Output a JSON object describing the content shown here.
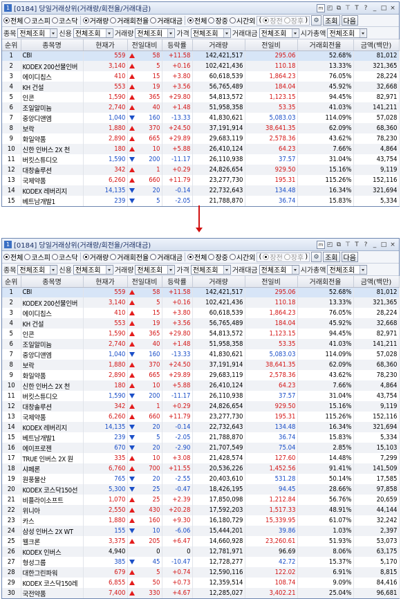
{
  "window": {
    "title": "[0184] 당일거래상위(거래량/회전율/거래대금)",
    "title_buttons": [
      "m",
      "◰",
      "□",
      "ꟷ",
      "T",
      "?",
      "_",
      "□",
      "×"
    ]
  },
  "market_filter": [
    "전체",
    "코스피",
    "코스닥"
  ],
  "sort_filter": [
    "거래량",
    "거래회전율",
    "거래대금"
  ],
  "period_filter": [
    "전체",
    "장중",
    "시간외"
  ],
  "session_filter": [
    "장전",
    "장후"
  ],
  "buttons": {
    "query": "조회",
    "next": "다음"
  },
  "filters": [
    {
      "label": "종목",
      "value": "전체조회"
    },
    {
      "label": "신용",
      "value": "전체조회"
    },
    {
      "label": "거래량",
      "value": "전체조회"
    },
    {
      "label": "가격",
      "value": "전체조회"
    },
    {
      "label": "거래대금",
      "value": "전체조회"
    },
    {
      "label": "시가총액",
      "value": "전체조회"
    }
  ],
  "columns": [
    "순위",
    "종목명",
    "현재가",
    "전일대비",
    "등락률",
    "거래량",
    "전일비",
    "거래회전율",
    "금액(백만)"
  ],
  "rows_top": [
    {
      "rank": "1",
      "name": "CBI",
      "price": "559",
      "dir": "up",
      "chg": "58",
      "rate": "+11.58",
      "vol": "142,421,517",
      "prev": "295.06",
      "turn": "52.68%",
      "amt": "81,012"
    },
    {
      "rank": "2",
      "name": "KODEX 200선물인버",
      "price": "3,140",
      "dir": "up",
      "chg": "5",
      "rate": "+0.16",
      "vol": "102,421,436",
      "prev": "110.18",
      "turn": "13.33%",
      "amt": "321,365"
    },
    {
      "rank": "3",
      "name": "에이디칩스",
      "price": "410",
      "dir": "up",
      "chg": "15",
      "rate": "+3.80",
      "vol": "60,618,539",
      "prev": "1,864.23",
      "turn": "76.05%",
      "amt": "28,224"
    },
    {
      "rank": "4",
      "name": "KH 건설",
      "price": "553",
      "dir": "up",
      "chg": "19",
      "rate": "+3.56",
      "vol": "56,765,489",
      "prev": "184.04",
      "turn": "45.92%",
      "amt": "32,668"
    },
    {
      "rank": "5",
      "name": "인콘",
      "price": "1,590",
      "dir": "lim",
      "chg": "365",
      "rate": "+29.80",
      "vol": "54,813,572",
      "prev": "1,123.15",
      "turn": "94.45%",
      "amt": "82,971"
    },
    {
      "rank": "6",
      "name": "조일알미늄",
      "price": "2,740",
      "dir": "up",
      "chg": "40",
      "rate": "+1.48",
      "vol": "51,958,358",
      "prev": "53.35",
      "turn": "41.03%",
      "amt": "141,211"
    },
    {
      "rank": "7",
      "name": "중앙디앤엠",
      "price": "1,040",
      "dir": "dn",
      "chg": "160",
      "rate": "-13.33",
      "vol": "41,830,621",
      "prev": "5,083.03",
      "turn": "114.09%",
      "amt": "57,028"
    },
    {
      "rank": "8",
      "name": "보락",
      "price": "1,880",
      "dir": "up",
      "chg": "370",
      "rate": "+24.50",
      "vol": "37,191,914",
      "prev": "38,641.35",
      "turn": "62.09%",
      "amt": "68,360"
    },
    {
      "rank": "9",
      "name": "화일약품",
      "price": "2,890",
      "dir": "lim",
      "chg": "665",
      "rate": "+29.89",
      "vol": "29,683,119",
      "prev": "2,578.36",
      "turn": "43.62%",
      "amt": "78,230"
    },
    {
      "rank": "10",
      "name": "신한 인버스 2X 천",
      "price": "180",
      "dir": "up",
      "chg": "10",
      "rate": "+5.88",
      "vol": "26,410,124",
      "prev": "64.23",
      "turn": "7.66%",
      "amt": "4,864"
    },
    {
      "rank": "11",
      "name": "버킷스튜디오",
      "price": "1,590",
      "dir": "dn",
      "chg": "200",
      "rate": "-11.17",
      "vol": "26,110,938",
      "prev": "37.57",
      "turn": "31.04%",
      "amt": "43,754"
    },
    {
      "rank": "12",
      "name": "대창솔루션",
      "price": "342",
      "dir": "up",
      "chg": "1",
      "rate": "+0.29",
      "vol": "24,826,654",
      "prev": "929.50",
      "turn": "15.16%",
      "amt": "9,119"
    },
    {
      "rank": "13",
      "name": "국제약품",
      "price": "6,260",
      "dir": "up",
      "chg": "660",
      "rate": "+11.79",
      "vol": "23,277,730",
      "prev": "195.31",
      "turn": "115.26%",
      "amt": "152,116"
    },
    {
      "rank": "14",
      "name": "KODEX 레버리지",
      "price": "14,135",
      "dir": "dn",
      "chg": "20",
      "rate": "-0.14",
      "vol": "22,732,643",
      "prev": "134.48",
      "turn": "16.34%",
      "amt": "321,694"
    },
    {
      "rank": "15",
      "name": "베트남개발1",
      "price": "239",
      "dir": "dn",
      "chg": "5",
      "rate": "-2.05",
      "vol": "21,788,870",
      "prev": "36.74",
      "turn": "15.83%",
      "amt": "5,334"
    }
  ],
  "rows_bottom": [
    {
      "rank": "1",
      "name": "CBI",
      "price": "559",
      "dir": "up",
      "chg": "58",
      "rate": "+11.58",
      "vol": "142,421,517",
      "prev": "295.06",
      "turn": "52.68%",
      "amt": "81,012"
    },
    {
      "rank": "2",
      "name": "KODEX 200선물인버",
      "price": "3,140",
      "dir": "up",
      "chg": "5",
      "rate": "+0.16",
      "vol": "102,421,436",
      "prev": "110.18",
      "turn": "13.33%",
      "amt": "321,365"
    },
    {
      "rank": "3",
      "name": "에이디칩스",
      "price": "410",
      "dir": "up",
      "chg": "15",
      "rate": "+3.80",
      "vol": "60,618,539",
      "prev": "1,864.23",
      "turn": "76.05%",
      "amt": "28,224"
    },
    {
      "rank": "4",
      "name": "KH 건설",
      "price": "553",
      "dir": "up",
      "chg": "19",
      "rate": "+3.56",
      "vol": "56,765,489",
      "prev": "184.04",
      "turn": "45.92%",
      "amt": "32,668"
    },
    {
      "rank": "5",
      "name": "인콘",
      "price": "1,590",
      "dir": "lim",
      "chg": "365",
      "rate": "+29.80",
      "vol": "54,813,572",
      "prev": "1,123.15",
      "turn": "94.45%",
      "amt": "82,971"
    },
    {
      "rank": "6",
      "name": "조일알미늄",
      "price": "2,740",
      "dir": "up",
      "chg": "40",
      "rate": "+1.48",
      "vol": "51,958,358",
      "prev": "53.35",
      "turn": "41.03%",
      "amt": "141,211"
    },
    {
      "rank": "7",
      "name": "중앙디앤엠",
      "price": "1,040",
      "dir": "dn",
      "chg": "160",
      "rate": "-13.33",
      "vol": "41,830,621",
      "prev": "5,083.03",
      "turn": "114.09%",
      "amt": "57,028"
    },
    {
      "rank": "8",
      "name": "보락",
      "price": "1,880",
      "dir": "up",
      "chg": "370",
      "rate": "+24.50",
      "vol": "37,191,914",
      "prev": "38,641.35",
      "turn": "62.09%",
      "amt": "68,360"
    },
    {
      "rank": "9",
      "name": "화일약품",
      "price": "2,890",
      "dir": "lim",
      "chg": "665",
      "rate": "+29.89",
      "vol": "29,683,119",
      "prev": "2,578.36",
      "turn": "43.62%",
      "amt": "78,230"
    },
    {
      "rank": "10",
      "name": "신한 인버스 2X 천",
      "price": "180",
      "dir": "up",
      "chg": "10",
      "rate": "+5.88",
      "vol": "26,410,124",
      "prev": "64.23",
      "turn": "7.66%",
      "amt": "4,864"
    },
    {
      "rank": "11",
      "name": "버킷스튜디오",
      "price": "1,590",
      "dir": "dn",
      "chg": "200",
      "rate": "-11.17",
      "vol": "26,110,938",
      "prev": "37.57",
      "turn": "31.04%",
      "amt": "43,754"
    },
    {
      "rank": "12",
      "name": "대창솔루션",
      "price": "342",
      "dir": "up",
      "chg": "1",
      "rate": "+0.29",
      "vol": "24,826,654",
      "prev": "929.50",
      "turn": "15.16%",
      "amt": "9,119"
    },
    {
      "rank": "13",
      "name": "국제약품",
      "price": "6,260",
      "dir": "up",
      "chg": "660",
      "rate": "+11.79",
      "vol": "23,277,730",
      "prev": "195.31",
      "turn": "115.26%",
      "amt": "152,116"
    },
    {
      "rank": "14",
      "name": "KODEX 레버리지",
      "price": "14,135",
      "dir": "dn",
      "chg": "20",
      "rate": "-0.14",
      "vol": "22,732,643",
      "prev": "134.48",
      "turn": "16.34%",
      "amt": "321,694"
    },
    {
      "rank": "15",
      "name": "베트남개발1",
      "price": "239",
      "dir": "dn",
      "chg": "5",
      "rate": "-2.05",
      "vol": "21,788,870",
      "prev": "36.74",
      "turn": "15.83%",
      "amt": "5,334"
    },
    {
      "rank": "16",
      "name": "에이프로젠",
      "price": "670",
      "dir": "dn",
      "chg": "20",
      "rate": "-2.90",
      "vol": "21,707,549",
      "prev": "75.04",
      "turn": "2.85%",
      "amt": "15,103"
    },
    {
      "rank": "17",
      "name": "TRUE 인버스 2X 원",
      "price": "335",
      "dir": "up",
      "chg": "10",
      "rate": "+3.08",
      "vol": "21,428,574",
      "prev": "127.60",
      "turn": "14.48%",
      "amt": "7,299"
    },
    {
      "rank": "18",
      "name": "샤페론",
      "price": "6,760",
      "dir": "up",
      "chg": "700",
      "rate": "+11.55",
      "vol": "20,536,226",
      "prev": "1,452.56",
      "turn": "91.41%",
      "amt": "141,509"
    },
    {
      "rank": "19",
      "name": "원풍물산",
      "price": "765",
      "dir": "dn",
      "chg": "20",
      "rate": "-2.55",
      "vol": "20,403,610",
      "prev": "531.28",
      "turn": "50.14%",
      "amt": "17,585"
    },
    {
      "rank": "20",
      "name": "KODEX 코스닥150선",
      "price": "5,300",
      "dir": "dn",
      "chg": "25",
      "rate": "-0.47",
      "vol": "18,426,195",
      "prev": "94.45",
      "turn": "28.66%",
      "amt": "97,858"
    },
    {
      "rank": "21",
      "name": "비플라이소프트",
      "price": "1,070",
      "dir": "up",
      "chg": "25",
      "rate": "+2.39",
      "vol": "17,850,098",
      "prev": "1,212.84",
      "turn": "56.76%",
      "amt": "20,659"
    },
    {
      "rank": "22",
      "name": "위니아",
      "price": "2,550",
      "dir": "up",
      "chg": "430",
      "rate": "+20.28",
      "vol": "17,592,203",
      "prev": "1,517.33",
      "turn": "48.91%",
      "amt": "44,144"
    },
    {
      "rank": "23",
      "name": "카스",
      "price": "1,880",
      "dir": "up",
      "chg": "160",
      "rate": "+9.30",
      "vol": "16,180,729",
      "prev": "15,339.95",
      "turn": "61.07%",
      "amt": "32,242"
    },
    {
      "rank": "24",
      "name": "삼성 인버스 2X WT",
      "price": "155",
      "dir": "dn",
      "chg": "10",
      "rate": "-6.06",
      "vol": "15,444,201",
      "prev": "39.86",
      "turn": "1.03%",
      "amt": "2,397"
    },
    {
      "rank": "25",
      "name": "웰크론",
      "price": "3,375",
      "dir": "up",
      "chg": "205",
      "rate": "+6.47",
      "vol": "14,660,928",
      "prev": "23,260.61",
      "turn": "51.93%",
      "amt": "53,073"
    },
    {
      "rank": "26",
      "name": "KODEX 인버스",
      "price": "4,940",
      "dir": "none",
      "chg": "0",
      "rate": "0",
      "vol": "12,781,971",
      "prev": "96.69",
      "turn": "8.06%",
      "amt": "63,175"
    },
    {
      "rank": "27",
      "name": "형성그룹",
      "price": "385",
      "dir": "dn",
      "chg": "45",
      "rate": "-10.47",
      "vol": "12,728,277",
      "prev": "42.72",
      "turn": "15.37%",
      "amt": "5,170"
    },
    {
      "rank": "28",
      "name": "대한그린파워",
      "price": "679",
      "dir": "up",
      "chg": "5",
      "rate": "+0.74",
      "vol": "12,590,116",
      "prev": "122.02",
      "turn": "6.91%",
      "amt": "8,815"
    },
    {
      "rank": "29",
      "name": "KODEX 코스닥150레",
      "price": "6,855",
      "dir": "up",
      "chg": "50",
      "rate": "+0.73",
      "vol": "12,359,514",
      "prev": "108.74",
      "turn": "9.09%",
      "amt": "84,416"
    },
    {
      "rank": "30",
      "name": "국전약품",
      "price": "7,400",
      "dir": "up",
      "chg": "330",
      "rate": "+4.67",
      "vol": "12,285,027",
      "prev": "3,402.21",
      "turn": "25.04%",
      "amt": "96,681"
    }
  ]
}
